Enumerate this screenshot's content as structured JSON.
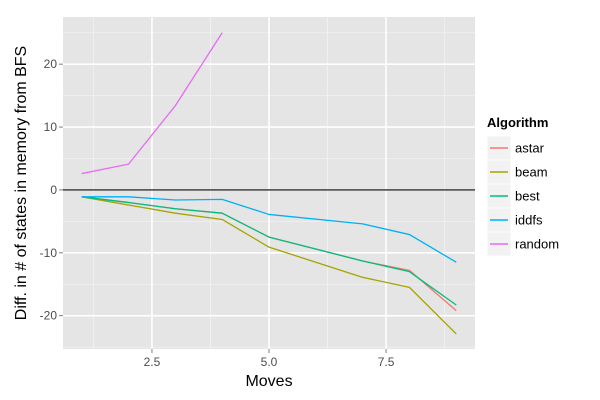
{
  "chart_data": {
    "type": "line",
    "title": "",
    "xlabel": "Moves",
    "ylabel": "Diff. in # of states in memory from BFS",
    "xlim": [
      0.6,
      9.4
    ],
    "ylim": [
      -25.3,
      27.5
    ],
    "x_ticks": [
      {
        "value": 2.5,
        "label": "2.5"
      },
      {
        "value": 5.0,
        "label": "5.0"
      },
      {
        "value": 7.5,
        "label": "7.5"
      }
    ],
    "y_ticks": [
      {
        "value": -20,
        "label": "-20"
      },
      {
        "value": -10,
        "label": "-10"
      },
      {
        "value": 0,
        "label": "0"
      },
      {
        "value": 10,
        "label": "10"
      },
      {
        "value": 20,
        "label": "20"
      }
    ],
    "reference_line_y": 0,
    "grid": true,
    "legend_position": "right",
    "legend_title": "Algorithm",
    "series": [
      {
        "name": "astar",
        "color": "#F8766D",
        "x": [
          1,
          2,
          3,
          4,
          5,
          7,
          8,
          9
        ],
        "y": [
          -1.1,
          -2.0,
          -3.0,
          -3.7,
          -7.5,
          -11.3,
          -12.8,
          -19.2
        ]
      },
      {
        "name": "beam",
        "color": "#A3A500",
        "x": [
          1,
          2,
          3,
          4,
          5,
          7,
          8,
          9
        ],
        "y": [
          -1.1,
          -2.4,
          -3.7,
          -4.7,
          -9.1,
          -13.9,
          -15.5,
          -22.9
        ]
      },
      {
        "name": "best",
        "color": "#00BF7D",
        "x": [
          1,
          2,
          3,
          4,
          5,
          7,
          8,
          9
        ],
        "y": [
          -1.1,
          -2.0,
          -3.0,
          -3.7,
          -7.5,
          -11.3,
          -13.0,
          -18.3
        ]
      },
      {
        "name": "iddfs",
        "color": "#00B0F6",
        "x": [
          1,
          2,
          3,
          4,
          5,
          7,
          8,
          9
        ],
        "y": [
          -1.1,
          -1.1,
          -1.6,
          -1.5,
          -3.9,
          -5.4,
          -7.1,
          -11.5
        ]
      },
      {
        "name": "random",
        "color": "#E76BF3",
        "x": [
          1,
          2,
          3,
          4
        ],
        "y": [
          2.6,
          4.1,
          13.4,
          25.0
        ]
      }
    ]
  }
}
